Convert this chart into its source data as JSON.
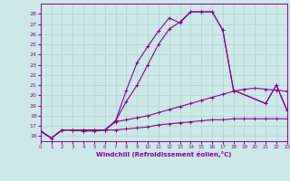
{
  "xlabel": "Windchill (Refroidissement éolien,°C)",
  "bg_color": "#cce8e8",
  "grid_color": "#aad4d4",
  "line_color": "#880088",
  "xmin": 0,
  "xmax": 23,
  "ymin": 15.5,
  "ymax": 29,
  "yticks": [
    16,
    17,
    18,
    19,
    20,
    21,
    22,
    23,
    24,
    25,
    26,
    27,
    28
  ],
  "curves": [
    {
      "x": [
        0,
        1,
        2,
        3,
        4,
        5,
        6,
        7,
        8,
        9,
        10,
        11,
        12,
        13,
        14,
        15,
        16,
        17,
        18,
        21,
        22,
        23
      ],
      "y": [
        16.5,
        15.8,
        16.6,
        16.6,
        16.6,
        16.6,
        16.6,
        17.5,
        20.5,
        23.2,
        24.8,
        26.3,
        27.6,
        27.1,
        28.2,
        28.2,
        28.2,
        26.4,
        20.5,
        19.2,
        21.0,
        18.5
      ]
    },
    {
      "x": [
        0,
        1,
        2,
        3,
        4,
        5,
        6,
        7,
        8,
        9,
        10,
        11,
        12,
        13,
        14,
        15,
        16,
        17,
        18,
        21,
        22,
        23
      ],
      "y": [
        16.5,
        15.8,
        16.6,
        16.6,
        16.5,
        16.6,
        16.6,
        17.5,
        19.4,
        21.0,
        23.0,
        25.0,
        26.5,
        27.2,
        28.2,
        28.2,
        28.2,
        26.4,
        20.5,
        19.2,
        21.0,
        18.5
      ]
    },
    {
      "x": [
        0,
        1,
        2,
        3,
        4,
        5,
        6,
        7,
        8,
        9,
        10,
        11,
        12,
        13,
        14,
        15,
        16,
        17,
        18,
        19,
        20,
        21,
        22,
        23
      ],
      "y": [
        16.5,
        15.8,
        16.6,
        16.6,
        16.6,
        16.6,
        16.6,
        17.4,
        17.6,
        17.8,
        18.0,
        18.3,
        18.6,
        18.9,
        19.2,
        19.5,
        19.8,
        20.1,
        20.4,
        20.6,
        20.7,
        20.6,
        20.5,
        20.4
      ]
    },
    {
      "x": [
        0,
        1,
        2,
        3,
        4,
        5,
        6,
        7,
        8,
        9,
        10,
        11,
        12,
        13,
        14,
        15,
        16,
        17,
        18,
        19,
        20,
        21,
        22,
        23
      ],
      "y": [
        16.5,
        15.8,
        16.6,
        16.6,
        16.5,
        16.5,
        16.6,
        16.6,
        16.7,
        16.8,
        16.9,
        17.1,
        17.2,
        17.3,
        17.4,
        17.5,
        17.6,
        17.6,
        17.7,
        17.7,
        17.7,
        17.7,
        17.7,
        17.7
      ]
    }
  ]
}
